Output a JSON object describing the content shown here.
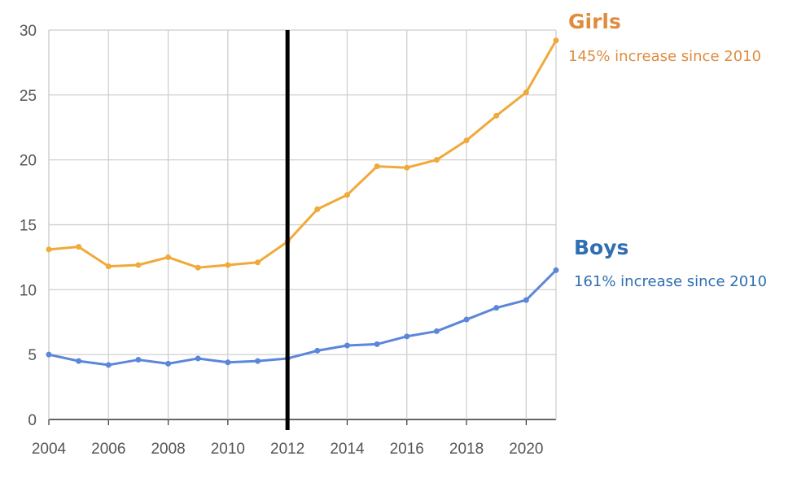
{
  "chart_data": {
    "type": "line",
    "x": [
      2004,
      2005,
      2006,
      2007,
      2008,
      2009,
      2010,
      2011,
      2012,
      2013,
      2014,
      2015,
      2016,
      2017,
      2018,
      2019,
      2020,
      2021
    ],
    "xlim": [
      2004,
      2021
    ],
    "ylim": [
      0,
      30
    ],
    "xticks": [
      "2004",
      "2006",
      "2008",
      "2010",
      "2012",
      "2014",
      "2016",
      "2018",
      "2020"
    ],
    "yticks": [
      "0",
      "5",
      "10",
      "15",
      "20",
      "25",
      "30"
    ],
    "grid": true,
    "marker_line": {
      "x": 2012,
      "color": "#000000"
    },
    "series": [
      {
        "name": "Girls",
        "color": "#f0a93a",
        "values": [
          13.1,
          13.3,
          11.8,
          11.9,
          12.5,
          11.7,
          11.9,
          12.1,
          13.7,
          16.2,
          17.3,
          19.5,
          19.4,
          20.0,
          21.5,
          23.4,
          25.2,
          29.2
        ]
      },
      {
        "name": "Boys",
        "color": "#5b86da",
        "values": [
          5.0,
          4.5,
          4.2,
          4.6,
          4.3,
          4.7,
          4.4,
          4.5,
          4.7,
          5.3,
          5.7,
          5.8,
          6.4,
          6.8,
          7.7,
          8.6,
          9.2,
          11.5
        ]
      }
    ],
    "annotations": [
      {
        "title": "Girls",
        "text": "145% increase since 2010",
        "color": "#e08c3e"
      },
      {
        "title": "Boys",
        "text": "161% increase since 2010",
        "color": "#2f6eb3"
      }
    ]
  }
}
